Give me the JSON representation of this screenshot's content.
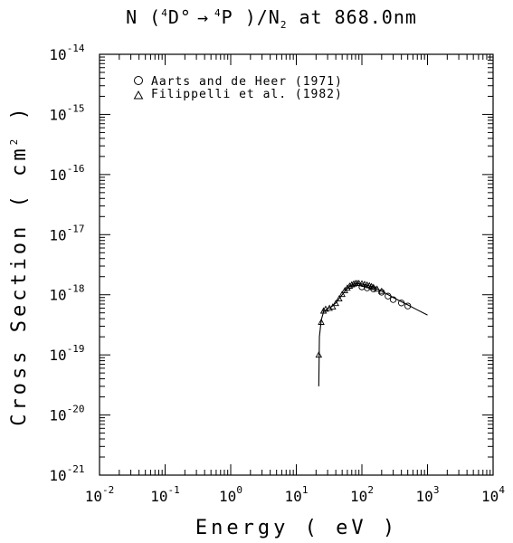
{
  "chart_data": {
    "type": "scatter",
    "title": "N ( 4D° → 4P )/N2 at 868.0nm",
    "title_parts": {
      "prefix": "N (",
      "sup1": "4",
      "state1": "D°",
      "arrow": "→",
      "sup2": "4",
      "state2": "P )/N",
      "sub": "2",
      "suffix": " at 868.0nm"
    },
    "xlabel": "Energy ( eV )",
    "ylabel": "Cross Section ( cm  )",
    "ylabel_parts": {
      "main": "Cross Section ( cm",
      "sup": "2",
      "end": " )"
    },
    "x_scale": "log",
    "y_scale": "log",
    "xlim": [
      0.01,
      10000
    ],
    "ylim": [
      1e-21,
      1e-14
    ],
    "x_ticks": [
      {
        "base": "10",
        "exp": "-2"
      },
      {
        "base": "10",
        "exp": "-1"
      },
      {
        "base": "10",
        "exp": "0"
      },
      {
        "base": "10",
        "exp": "1"
      },
      {
        "base": "10",
        "exp": "2"
      },
      {
        "base": "10",
        "exp": "3"
      },
      {
        "base": "10",
        "exp": "4"
      }
    ],
    "y_ticks": [
      {
        "base": "10",
        "exp": "-21"
      },
      {
        "base": "10",
        "exp": "-20"
      },
      {
        "base": "10",
        "exp": "-19"
      },
      {
        "base": "10",
        "exp": "-18"
      },
      {
        "base": "10",
        "exp": "-17"
      },
      {
        "base": "10",
        "exp": "-16"
      },
      {
        "base": "10",
        "exp": "-15"
      },
      {
        "base": "10",
        "exp": "-14"
      }
    ],
    "legend_position": "top-left",
    "grid": false,
    "series": [
      {
        "name": "Aarts and de Heer (1971)",
        "marker": "circle",
        "x": [
          100,
          120,
          150,
          200,
          250,
          300,
          400,
          500
        ],
        "y": [
          1.35e-18,
          1.3e-18,
          1.25e-18,
          1.1e-18,
          9.5e-19,
          8.3e-19,
          7.3e-19,
          6.5e-19
        ]
      },
      {
        "name": "Filippelli et al. (1982)",
        "marker": "triangle",
        "x": [
          22,
          24,
          26,
          28,
          32,
          36,
          40,
          45,
          50,
          55,
          60,
          65,
          70,
          75,
          80,
          85,
          90,
          100,
          110,
          120,
          130,
          140,
          150,
          170,
          200
        ],
        "y": [
          1e-19,
          3.5e-19,
          5.4e-19,
          5.8e-19,
          6e-19,
          6.3e-19,
          7.2e-19,
          8.6e-19,
          1.02e-18,
          1.18e-18,
          1.3e-18,
          1.4e-18,
          1.47e-18,
          1.52e-18,
          1.55e-18,
          1.55e-18,
          1.55e-18,
          1.53e-18,
          1.5e-18,
          1.46e-18,
          1.42e-18,
          1.38e-18,
          1.33e-18,
          1.25e-18,
          1.15e-18
        ]
      },
      {
        "name": "",
        "marker": "line",
        "x": [
          22,
          22.5,
          24,
          26,
          30,
          35,
          40,
          50,
          60,
          70,
          80,
          90,
          100,
          120,
          150,
          200,
          300,
          500,
          700,
          1000
        ],
        "y": [
          3e-20,
          2e-19,
          3.8e-19,
          5.2e-19,
          5.9e-19,
          6.4e-19,
          7.3e-19,
          1e-18,
          1.28e-18,
          1.45e-18,
          1.52e-18,
          1.53e-18,
          1.51e-18,
          1.45e-18,
          1.33e-18,
          1.15e-18,
          9e-19,
          6.8e-19,
          5.6e-19,
          4.6e-19
        ]
      }
    ],
    "colors": {
      "line": "#000000",
      "background": "#ffffff"
    }
  }
}
